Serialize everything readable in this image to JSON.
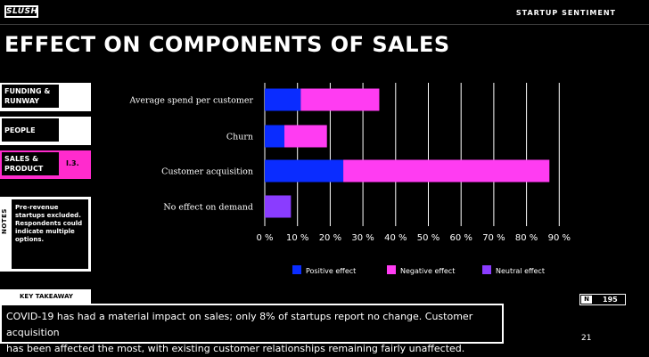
{
  "header": {
    "logo": "SLUSH",
    "section": "STARTUP SENTIMENT"
  },
  "title": "EFFECT ON COMPONENTS OF SALES",
  "sidebar": {
    "items": [
      {
        "label_line1": "FUNDING &",
        "label_line2": "RUNWAY",
        "code": ""
      },
      {
        "label_line1": "PEOPLE",
        "label_line2": "",
        "code": ""
      },
      {
        "label_line1": "SALES &",
        "label_line2": "PRODUCT",
        "code": "I.3."
      }
    ]
  },
  "notes": {
    "label": "NOTES",
    "text": "Pre-revenue startups excluded. Respondents could indicate multiple options."
  },
  "takeaway": {
    "label": "KEY TAKEAWAY",
    "line1": "COVID-19 has had a material impact on sales; only 8% of startups report no change. Customer acquisition",
    "line2": "has been affected the most, with existing customer relationships remaining fairly unaffected."
  },
  "sample": {
    "n_label": "N",
    "n_value": "195"
  },
  "page_number": "21",
  "chart_data": {
    "type": "bar",
    "orientation": "horizontal",
    "stacked": true,
    "categories": [
      "Average spend per customer",
      "Churn",
      "Customer acquisition",
      "No effect on demand"
    ],
    "series": [
      {
        "name": "Positive effect",
        "color": "#0a2cff",
        "values": [
          11,
          6,
          24,
          0
        ]
      },
      {
        "name": "Negative effect",
        "color": "#ff3cf2",
        "values": [
          24,
          13,
          63,
          0
        ]
      },
      {
        "name": "Neutral effect",
        "color": "#8a3cff",
        "values": [
          0,
          0,
          0,
          8
        ]
      }
    ],
    "x_ticks": [
      "0 %",
      "10 %",
      "20 %",
      "30 %",
      "40 %",
      "50 %",
      "60 %",
      "70 %",
      "80 %",
      "90 %"
    ],
    "xlim": [
      0,
      90
    ],
    "grid": true,
    "legend_position": "bottom"
  }
}
